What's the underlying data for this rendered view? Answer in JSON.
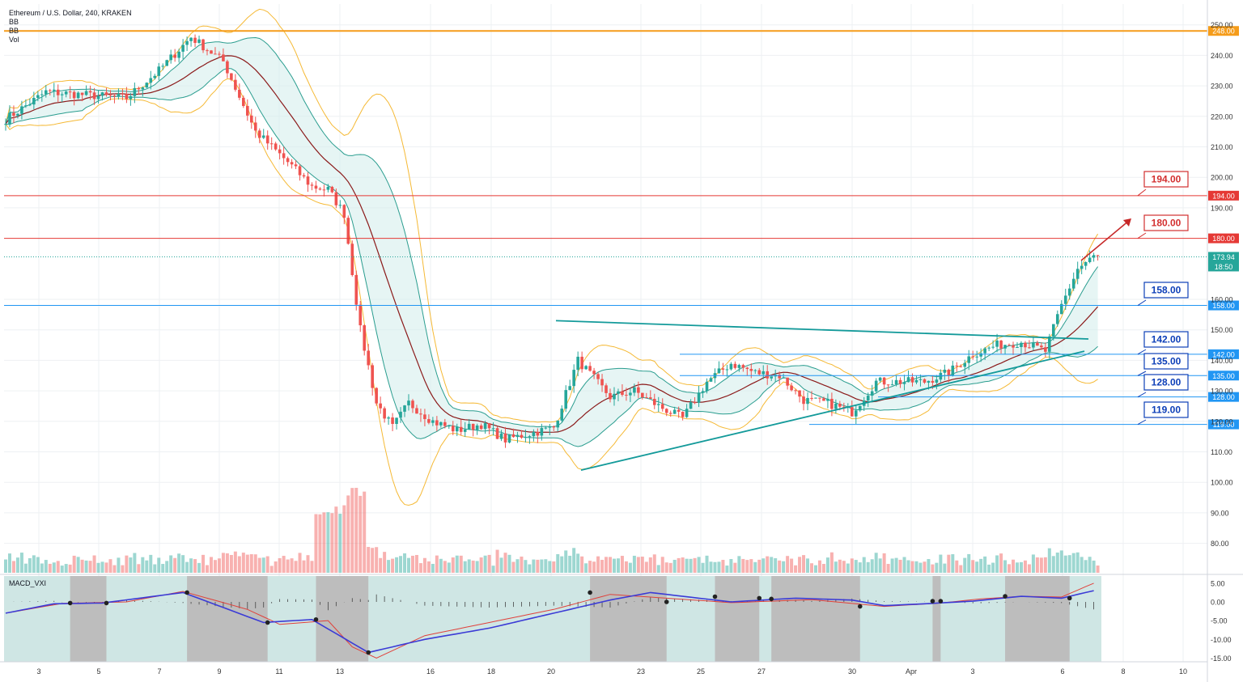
{
  "legend": {
    "title": "Ethereum / U.S. Dollar, 240, KRAKEN",
    "indicators": [
      "BB",
      "BB",
      "Vol"
    ]
  },
  "macd_label": "MACD_VXI",
  "colors": {
    "up": "#26a69a",
    "down": "#ef5350",
    "bb_inner": "#2a9d8f",
    "bb_outer": "#f5b935",
    "ma": "#8b1a1a",
    "macd": "#3b3bd6",
    "signal": "#e0403a",
    "resistance": "#e53935",
    "support": "#2196f3",
    "top_line": "#f59c1a",
    "trend": "#139a9a",
    "target_label_red": "#d32f2f",
    "target_label_blue": "#0d3fb8",
    "macd_bg": "#cfe6e4",
    "macd_gray": "#bdbdbd"
  },
  "chart_data": {
    "type": "candlestick",
    "title": "Ethereum / U.S. Dollar, 240, KRAKEN",
    "xlabel": "",
    "ylabel": "",
    "ylim": [
      75,
      252
    ],
    "x_ticks": [
      "3",
      "5",
      "7",
      "9",
      "11",
      "13",
      "16",
      "18",
      "20",
      "23",
      "25",
      "27",
      "30",
      "Apr",
      "3",
      "6",
      "8",
      "10"
    ],
    "y_ticks": [
      250,
      240,
      230,
      220,
      210,
      200,
      190,
      160,
      150,
      140,
      130,
      120,
      110,
      100,
      90,
      80
    ],
    "y_tick_labels": [
      "250.00",
      "240.00",
      "230.00",
      "220.00",
      "210.00",
      "200.00",
      "190.00",
      "160.00",
      "150.00",
      "140.00",
      "130.00",
      "120.00",
      "110.00",
      "100.00",
      "90.00",
      "80.00"
    ],
    "price_levels": [
      {
        "value": 248,
        "label": "248.00",
        "role": "top"
      },
      {
        "value": 194,
        "label": "194.00",
        "role": "resistance"
      },
      {
        "value": 180,
        "label": "180.00",
        "role": "resistance"
      },
      {
        "value": 158,
        "label": "158.00",
        "role": "support"
      },
      {
        "value": 142,
        "label": "142.00",
        "role": "support"
      },
      {
        "value": 135,
        "label": "135.00",
        "role": "support"
      },
      {
        "value": 128,
        "label": "128.00",
        "role": "support"
      },
      {
        "value": 119,
        "label": "119.00",
        "role": "support"
      }
    ],
    "callouts": [
      "194.00",
      "180.00",
      "158.00",
      "142.00",
      "135.00",
      "128.00",
      "119.00"
    ],
    "last_price": {
      "value": 173.94,
      "label": "173.94",
      "countdown": "18:50"
    },
    "trendlines": [
      {
        "from": [
          0.0,
          153
        ],
        "to": [
          1.0,
          147
        ]
      },
      {
        "from": [
          0.0,
          104
        ],
        "to": [
          1.0,
          143
        ]
      }
    ],
    "close_anchors": [
      [
        0,
        219
      ],
      [
        10,
        228
      ],
      [
        20,
        227
      ],
      [
        30,
        226
      ],
      [
        38,
        235
      ],
      [
        46,
        246
      ],
      [
        54,
        238
      ],
      [
        62,
        215
      ],
      [
        70,
        205
      ],
      [
        76,
        197
      ],
      [
        80,
        196
      ],
      [
        84,
        188
      ],
      [
        88,
        150
      ],
      [
        92,
        126
      ],
      [
        96,
        118
      ],
      [
        100,
        126
      ],
      [
        106,
        120
      ],
      [
        112,
        117
      ],
      [
        118,
        119
      ],
      [
        124,
        114
      ],
      [
        130,
        116
      ],
      [
        136,
        118
      ],
      [
        142,
        140
      ],
      [
        150,
        128
      ],
      [
        156,
        130
      ],
      [
        162,
        125
      ],
      [
        168,
        121
      ],
      [
        174,
        133
      ],
      [
        180,
        139
      ],
      [
        186,
        136
      ],
      [
        192,
        135
      ],
      [
        198,
        127
      ],
      [
        204,
        126
      ],
      [
        210,
        123
      ],
      [
        216,
        133
      ],
      [
        222,
        133
      ],
      [
        228,
        133
      ],
      [
        234,
        136
      ],
      [
        240,
        142
      ],
      [
        246,
        145
      ],
      [
        252,
        146
      ],
      [
        258,
        143
      ],
      [
        262,
        158
      ],
      [
        266,
        170
      ],
      [
        270,
        174
      ]
    ],
    "macd": {
      "ylim": [
        -16,
        6
      ],
      "y_ticks": [
        5,
        0,
        -5,
        -10,
        -15
      ],
      "y_tick_labels": [
        "5.00",
        "0.00",
        "-5.00",
        "-10.00",
        "-15.00"
      ],
      "macd_anchors": [
        [
          0,
          -3
        ],
        [
          12,
          -0.5
        ],
        [
          24,
          -0.3
        ],
        [
          44,
          2.5
        ],
        [
          64,
          -5.5
        ],
        [
          76,
          -4.7
        ],
        [
          90,
          -13.5
        ],
        [
          104,
          -10
        ],
        [
          120,
          -7
        ],
        [
          140,
          -2
        ],
        [
          150,
          0.5
        ],
        [
          160,
          2.5
        ],
        [
          180,
          0
        ],
        [
          196,
          1
        ],
        [
          210,
          0.5
        ],
        [
          218,
          -1
        ],
        [
          228,
          -0.5
        ],
        [
          240,
          0.2
        ],
        [
          252,
          1.5
        ],
        [
          262,
          1
        ],
        [
          270,
          3
        ]
      ],
      "signal_anchors": [
        [
          0,
          -3
        ],
        [
          14,
          -0.4
        ],
        [
          30,
          0
        ],
        [
          44,
          2.8
        ],
        [
          60,
          -2
        ],
        [
          68,
          -6
        ],
        [
          80,
          -5
        ],
        [
          86,
          -12
        ],
        [
          92,
          -15
        ],
        [
          104,
          -9
        ],
        [
          120,
          -5.5
        ],
        [
          136,
          -2
        ],
        [
          150,
          2
        ],
        [
          164,
          1
        ],
        [
          180,
          -0.2
        ],
        [
          200,
          0.6
        ],
        [
          218,
          -1.2
        ],
        [
          232,
          -0.3
        ],
        [
          242,
          0.8
        ],
        [
          252,
          1.5
        ],
        [
          262,
          1.3
        ],
        [
          270,
          5
        ]
      ],
      "dots": [
        [
          16,
          -0.3
        ],
        [
          25,
          -0.3
        ],
        [
          45,
          2.5
        ],
        [
          65,
          -5.5
        ],
        [
          77,
          -4.7
        ],
        [
          90,
          -13.5
        ],
        [
          145,
          2.5
        ],
        [
          164,
          0
        ],
        [
          176,
          1.4
        ],
        [
          187,
          1
        ],
        [
          190,
          0.8
        ],
        [
          212,
          -1.2
        ],
        [
          230,
          0.2
        ],
        [
          232,
          0.2
        ],
        [
          248,
          1.5
        ],
        [
          264,
          1
        ]
      ],
      "shaded": [
        [
          16,
          25
        ],
        [
          45,
          65
        ],
        [
          77,
          90
        ],
        [
          145,
          164
        ],
        [
          176,
          187
        ],
        [
          190,
          212
        ],
        [
          230,
          232
        ],
        [
          248,
          264
        ]
      ]
    }
  }
}
